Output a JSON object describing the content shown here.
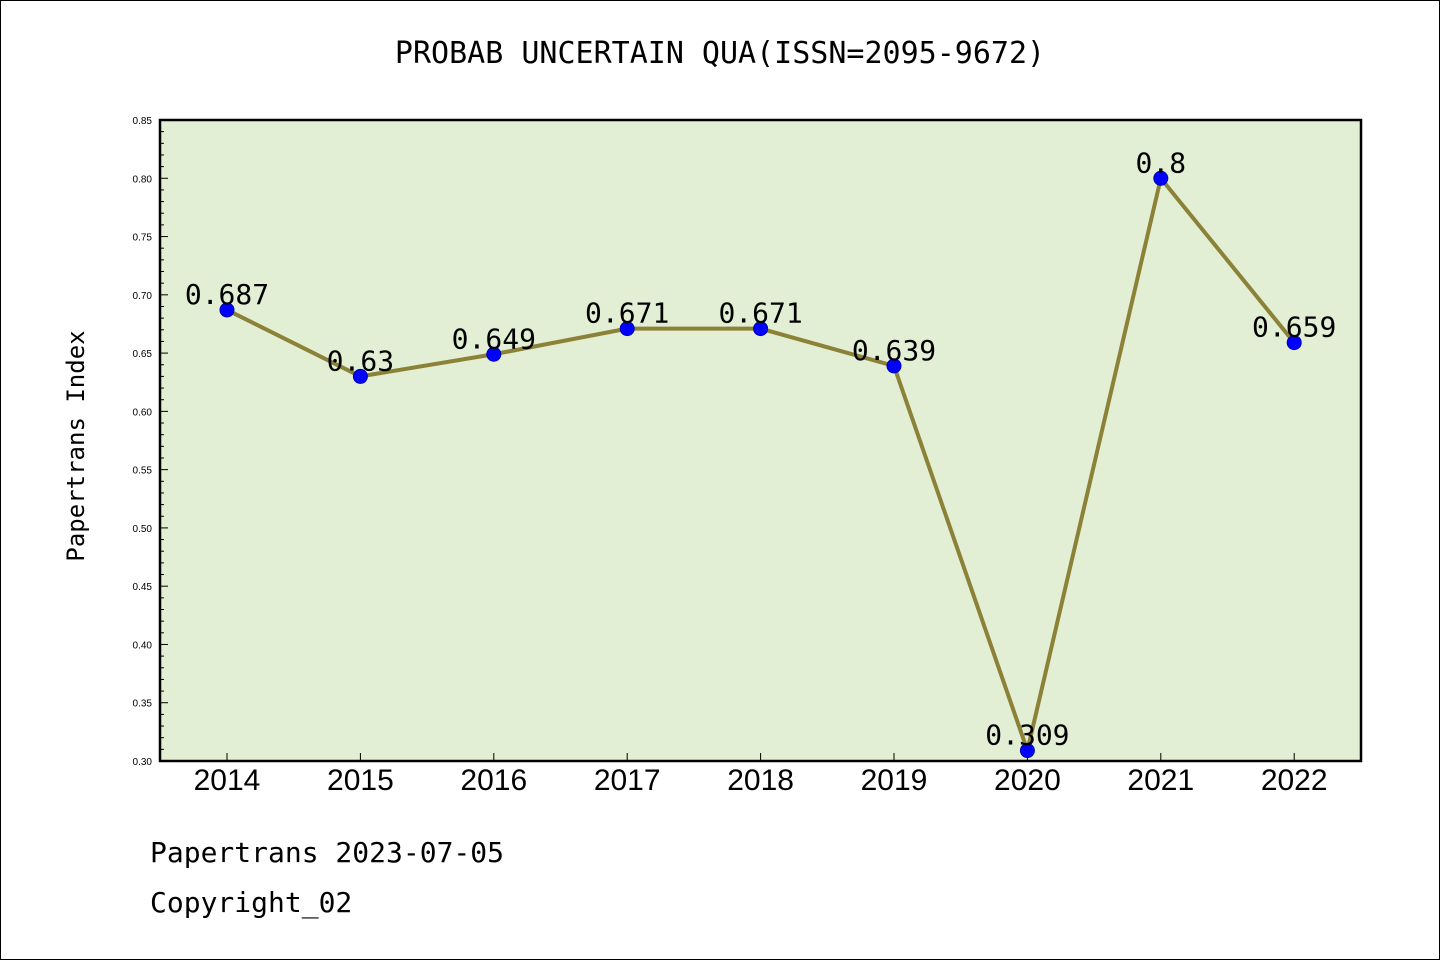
{
  "chart_data": {
    "type": "line",
    "title": "PROBAB UNCERTAIN QUA(ISSN=2095-9672)",
    "xlabel": "",
    "ylabel": "Papertrans Index",
    "categories": [
      "2014",
      "2015",
      "2016",
      "2017",
      "2018",
      "2019",
      "2020",
      "2021",
      "2022"
    ],
    "values": [
      0.687,
      0.63,
      0.649,
      0.671,
      0.671,
      0.639,
      0.309,
      0.8,
      0.659
    ],
    "data_labels": [
      "0.687",
      "0.63",
      "0.649",
      "0.671",
      "0.671",
      "0.639",
      "0.309",
      "0.8",
      "0.659"
    ],
    "ylim": [
      0.3,
      0.85
    ],
    "yticks": [
      "0.30",
      "0.35",
      "0.40",
      "0.45",
      "0.50",
      "0.55",
      "0.60",
      "0.65",
      "0.70",
      "0.75",
      "0.80",
      "0.85"
    ],
    "grid": false,
    "colors": {
      "plot_background": "#e2efd4",
      "line": "#8b8237",
      "marker": "#0000ff"
    }
  },
  "footer": {
    "line1": "Papertrans 2023-07-05",
    "line2": "Copyright_02"
  }
}
